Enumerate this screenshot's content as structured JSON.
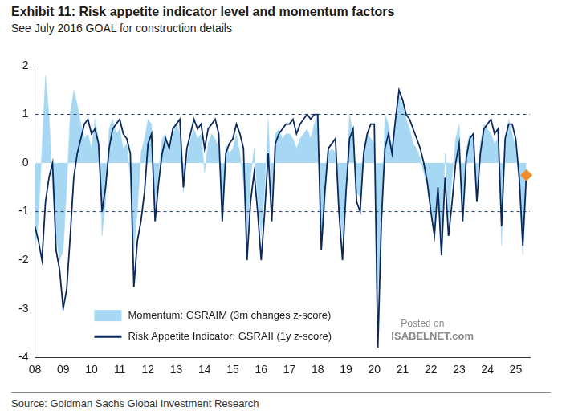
{
  "chart_data": {
    "type": "line",
    "title": "Exhibit 11: Risk appetite indicator level and momentum factors",
    "subtitle": "See July 2016 GOAL for construction details",
    "source": "Source: Goldman Sachs Global Investment Research",
    "watermark": [
      "Posted on",
      "ISABELNET.com"
    ],
    "x": [
      2008,
      2008.125,
      2008.25,
      2008.375,
      2008.5,
      2008.625,
      2008.75,
      2008.875,
      2009,
      2009.125,
      2009.25,
      2009.375,
      2009.5,
      2009.625,
      2009.75,
      2009.875,
      2010,
      2010.125,
      2010.25,
      2010.375,
      2010.5,
      2010.625,
      2010.75,
      2010.875,
      2011,
      2011.125,
      2011.25,
      2011.375,
      2011.5,
      2011.625,
      2011.75,
      2011.875,
      2012,
      2012.125,
      2012.25,
      2012.375,
      2012.5,
      2012.625,
      2012.75,
      2012.875,
      2013,
      2013.125,
      2013.25,
      2013.375,
      2013.5,
      2013.625,
      2013.75,
      2013.875,
      2014,
      2014.125,
      2014.25,
      2014.375,
      2014.5,
      2014.625,
      2014.75,
      2014.875,
      2015,
      2015.125,
      2015.25,
      2015.375,
      2015.5,
      2015.625,
      2015.75,
      2015.875,
      2016,
      2016.125,
      2016.25,
      2016.375,
      2016.5,
      2016.625,
      2016.75,
      2016.875,
      2017,
      2017.125,
      2017.25,
      2017.375,
      2017.5,
      2017.625,
      2017.75,
      2017.875,
      2018,
      2018.125,
      2018.25,
      2018.375,
      2018.5,
      2018.625,
      2018.75,
      2018.875,
      2019,
      2019.125,
      2019.25,
      2019.375,
      2019.5,
      2019.625,
      2019.75,
      2019.875,
      2020,
      2020.125,
      2020.25,
      2020.375,
      2020.5,
      2020.625,
      2020.75,
      2020.875,
      2021,
      2021.125,
      2021.25,
      2021.375,
      2021.5,
      2021.625,
      2021.75,
      2021.875,
      2022,
      2022.125,
      2022.25,
      2022.375,
      2022.5,
      2022.625,
      2022.75,
      2022.875,
      2023,
      2023.125,
      2023.25,
      2023.375,
      2023.5,
      2023.625,
      2023.75,
      2023.875,
      2024,
      2024.125,
      2024.25,
      2024.375,
      2024.5,
      2024.625,
      2024.75,
      2024.875,
      2025,
      2025.125,
      2025.25,
      2025.375
    ],
    "series": [
      {
        "name": "Momentum: GSRAIM (3m changes z-score)",
        "type": "area",
        "color": "#a6d8f4",
        "values": [
          -1.8,
          -1.2,
          0.3,
          1.8,
          1.0,
          -0.5,
          -1.5,
          -2.0,
          -1.8,
          -0.5,
          1.0,
          1.5,
          1.2,
          0.8,
          0.5,
          0.6,
          0.3,
          0.9,
          0.5,
          -1.5,
          -0.8,
          0.7,
          0.9,
          0.6,
          0.7,
          0.3,
          0.4,
          -0.3,
          -1.8,
          -1.0,
          0.2,
          0.5,
          0.9,
          0.8,
          -0.9,
          -0.2,
          0.5,
          0.6,
          0.2,
          0.6,
          0.8,
          0.6,
          -0.6,
          0.1,
          0.5,
          0.7,
          0.5,
          0.6,
          -0.2,
          0.4,
          0.6,
          0.5,
          0.3,
          -1.0,
          0.4,
          0.2,
          0.3,
          0.6,
          0.2,
          -0.4,
          -1.6,
          -0.3,
          0.3,
          -0.7,
          -1.5,
          -0.5,
          0.9,
          -0.8,
          0.6,
          0.7,
          0.5,
          0.6,
          0.6,
          0.5,
          0.3,
          0.5,
          0.6,
          0.7,
          0.5,
          0.8,
          1.0,
          -1.5,
          -0.9,
          0.2,
          0.3,
          0.2,
          -0.8,
          -1.5,
          -0.5,
          1.0,
          0.6,
          -0.6,
          -0.7,
          0.3,
          0.6,
          0.5,
          0.4,
          -2.6,
          -1.5,
          1.0,
          0.8,
          0.3,
          0.9,
          1.4,
          1.2,
          0.9,
          0.7,
          0.4,
          0.3,
          0.1,
          -0.2,
          -0.5,
          -1.0,
          -1.4,
          -0.4,
          -1.7,
          0.2,
          -1.2,
          -0.3,
          0.5,
          0.8,
          -1.0,
          0.3,
          0.6,
          0.5,
          -0.6,
          0.4,
          0.8,
          0.7,
          0.6,
          0.4,
          0.5,
          -1.7,
          0.4,
          0.9,
          0.6,
          0.3,
          -0.5,
          -1.9,
          -0.6
        ]
      },
      {
        "name": "Risk Appetite Indicator: GSRAII (1y z-score)",
        "type": "line",
        "color": "#0b2a5b",
        "values": [
          -1.3,
          -1.6,
          -2.0,
          -0.8,
          -0.3,
          0.0,
          -1.8,
          -2.2,
          -3.0,
          -2.6,
          -1.5,
          -0.3,
          0.2,
          0.5,
          0.8,
          0.9,
          0.6,
          0.7,
          0.4,
          -1.0,
          -0.5,
          0.3,
          0.7,
          0.8,
          0.9,
          0.6,
          0.5,
          0.2,
          -2.55,
          -1.6,
          -1.2,
          -0.6,
          0.4,
          0.6,
          -1.2,
          -0.4,
          0.2,
          0.5,
          0.3,
          0.7,
          0.8,
          0.9,
          -0.5,
          0.3,
          0.6,
          0.9,
          0.7,
          0.8,
          0.3,
          0.7,
          0.8,
          0.9,
          0.6,
          -1.2,
          0.2,
          0.4,
          0.5,
          0.8,
          0.6,
          0.3,
          -2.0,
          -0.8,
          -0.2,
          -1.0,
          -2.0,
          -1.0,
          0.2,
          -1.2,
          0.4,
          0.6,
          0.7,
          0.8,
          0.8,
          0.9,
          0.6,
          0.8,
          0.9,
          1.0,
          0.9,
          1.0,
          1.0,
          -1.8,
          -0.6,
          0.3,
          0.4,
          0.5,
          -1.0,
          -2.0,
          -0.6,
          0.5,
          0.7,
          -0.8,
          -1.0,
          0.2,
          0.6,
          0.8,
          0.8,
          -3.8,
          -1.2,
          0.3,
          0.6,
          0.2,
          0.9,
          1.5,
          1.3,
          1.0,
          0.9,
          0.7,
          0.5,
          0.3,
          0.0,
          -0.4,
          -1.0,
          -1.5,
          -0.5,
          -1.9,
          -0.3,
          -1.5,
          -0.8,
          0.0,
          0.4,
          -1.2,
          0.1,
          0.5,
          0.6,
          -0.8,
          0.2,
          0.7,
          0.8,
          0.9,
          0.6,
          0.7,
          -1.3,
          0.5,
          0.8,
          0.8,
          0.5,
          -0.3,
          -1.7,
          -0.25
        ]
      }
    ],
    "reference_lines": {
      "values": [
        1,
        -1
      ],
      "color": "#1f3b6b",
      "line_style": "dashed"
    },
    "highlight": {
      "x": 2025.375,
      "y": -0.25,
      "color": "#f28c28",
      "marker": "diamond"
    },
    "xlim": [
      2008,
      2025.5
    ],
    "xticks": [
      {
        "value": 2008,
        "label": "08"
      },
      {
        "value": 2009,
        "label": "09"
      },
      {
        "value": 2010,
        "label": "10"
      },
      {
        "value": 2011,
        "label": "11"
      },
      {
        "value": 2012,
        "label": "12"
      },
      {
        "value": 2013,
        "label": "13"
      },
      {
        "value": 2014,
        "label": "14"
      },
      {
        "value": 2015,
        "label": "15"
      },
      {
        "value": 2016,
        "label": "16"
      },
      {
        "value": 2017,
        "label": "17"
      },
      {
        "value": 2018,
        "label": "18"
      },
      {
        "value": 2019,
        "label": "19"
      },
      {
        "value": 2020,
        "label": "20"
      },
      {
        "value": 2021,
        "label": "21"
      },
      {
        "value": 2022,
        "label": "22"
      },
      {
        "value": 2023,
        "label": "23"
      },
      {
        "value": 2024,
        "label": "24"
      },
      {
        "value": 2025,
        "label": "25"
      }
    ],
    "ylim": [
      -4,
      2
    ],
    "yticks": [
      -4,
      -3,
      -2,
      -1,
      0,
      1,
      2
    ],
    "grid": false,
    "legend": "bottom-left"
  }
}
